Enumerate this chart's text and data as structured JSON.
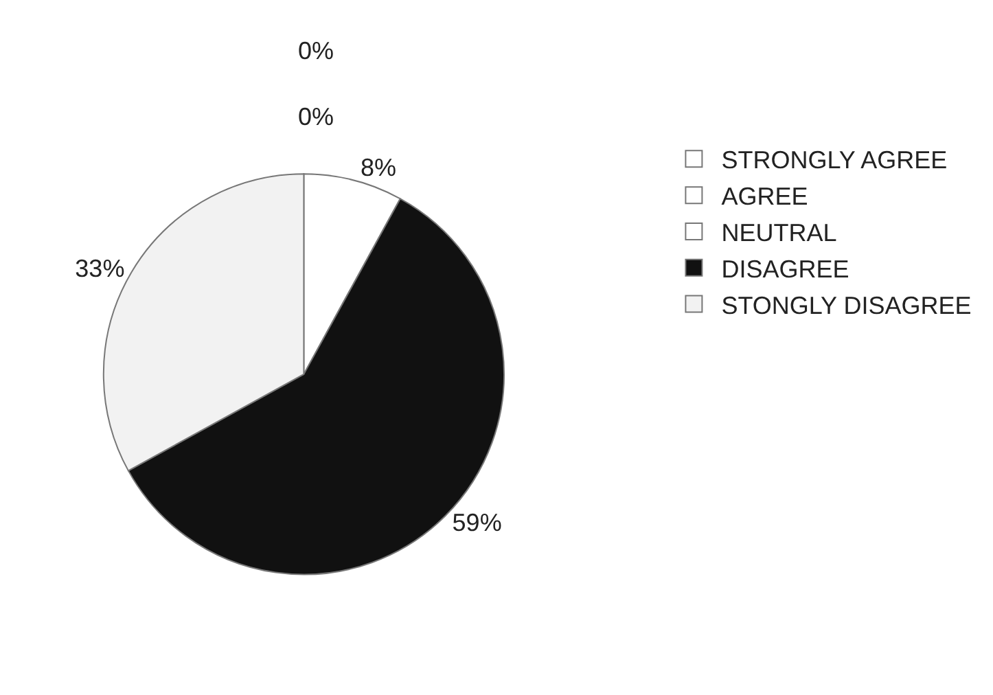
{
  "chart_data": {
    "type": "pie",
    "categories": [
      "STRONGLY AGREE",
      "AGREE",
      "NEUTRAL",
      "DISAGREE",
      "STONGLY DISAGREE"
    ],
    "values": [
      0,
      0,
      8,
      59,
      33
    ],
    "colors": [
      "#ffffff",
      "#ffffff",
      "#ffffff",
      "#111111",
      "#f2f2f2"
    ],
    "value_labels": [
      "0%",
      "0%",
      "8%",
      "59%",
      "33%"
    ],
    "legend": "right"
  }
}
